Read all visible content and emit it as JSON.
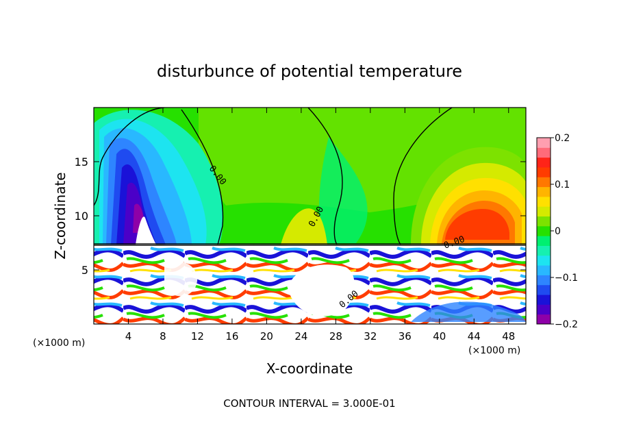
{
  "chart_data": {
    "type": "heatmap",
    "title": "disturbunce of potential temperature",
    "xlabel": "X-coordinate",
    "ylabel": "Z-coordinate",
    "x_unit": "(×1000 m)",
    "xlim": [
      0,
      50
    ],
    "ylim": [
      0,
      20
    ],
    "x_ticks": [
      4,
      8,
      12,
      16,
      20,
      24,
      28,
      32,
      36,
      40,
      44,
      48
    ],
    "y_ticks": [
      5,
      10,
      15
    ],
    "colorbar": {
      "min": -0.2,
      "max": 0.2,
      "tick_labels": [
        "0.2",
        "0.1",
        "0",
        "−0.1",
        "−0.2"
      ],
      "tick_values": [
        0.2,
        0.1,
        0,
        -0.1,
        -0.2
      ],
      "colors": [
        "#8e00a8",
        "#4b00c8",
        "#1a12d8",
        "#1f4bf0",
        "#2e85ff",
        "#29b8ff",
        "#1de4f0",
        "#16f0b0",
        "#00f070",
        "#26e000",
        "#7de200",
        "#d5ea00",
        "#ffe000",
        "#ffb400",
        "#ff7800",
        "#ff3c00",
        "#ff2418",
        "#ff6b7a",
        "#ff9fb0"
      ]
    },
    "contour_label": "0.00",
    "contour_interval_text": "CONTOUR INTERVAL = 3.000E-01",
    "features": [
      {
        "name": "cold anomaly",
        "x": 5.5,
        "z": 12,
        "value": -0.2
      },
      {
        "name": "warm anomaly",
        "x": 43,
        "z": 10.5,
        "value": 0.15
      },
      {
        "name": "turbulent boundary layer",
        "z_top": 7.3
      }
    ]
  }
}
